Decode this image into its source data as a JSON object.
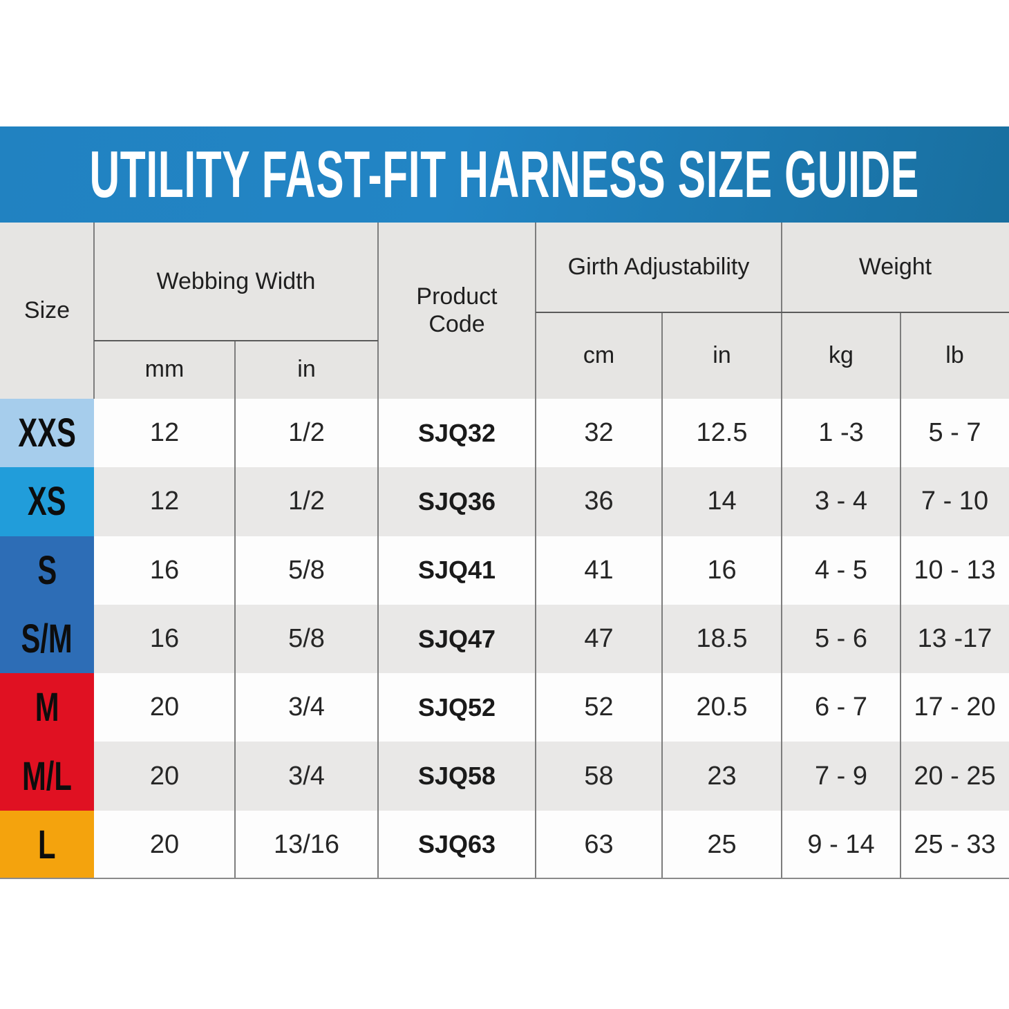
{
  "title": "UTILITY FAST-FIT HARNESS SIZE GUIDE",
  "colors": {
    "banner_gradient_start": "#2182c1",
    "banner_gradient_end": "#186f9f",
    "banner_text": "#ffffff",
    "header_background": "#e6e5e3",
    "row_stripe_light": "#fdfdfd",
    "row_stripe_gray": "#e9e8e7",
    "chip_xxs": "#a6cdec",
    "chip_xs": "#219dda",
    "chip_s": "#2d6db6",
    "chip_sm": "#2d6db6",
    "chip_m": "#e01122",
    "chip_ml": "#e01122",
    "chip_l": "#f4a30d",
    "grid_line": "#7d7d7d"
  },
  "table": {
    "headers": {
      "size": "Size",
      "webbing_width": "Webbing Width",
      "webbing_mm": "mm",
      "webbing_in": "in",
      "product_code": "Product Code",
      "girth_adjustability": "Girth Adjustability",
      "girth_cm": "cm",
      "girth_in": "in",
      "weight": "Weight",
      "weight_kg": "kg",
      "weight_lb": "lb"
    },
    "rows": [
      {
        "size": "XXS",
        "chip_color": "#a6cdec",
        "mm": "12",
        "in": "1/2",
        "code": "SJQ32",
        "cm": "32",
        "girth_in": "12.5",
        "kg": "1 -3",
        "lb": "5 - 7"
      },
      {
        "size": "XS",
        "chip_color": "#219dda",
        "mm": "12",
        "in": "1/2",
        "code": "SJQ36",
        "cm": "36",
        "girth_in": "14",
        "kg": "3 - 4",
        "lb": "7 - 10"
      },
      {
        "size": "S",
        "chip_color": "#2d6db6",
        "mm": "16",
        "in": "5/8",
        "code": "SJQ41",
        "cm": "41",
        "girth_in": "16",
        "kg": "4 - 5",
        "lb": "10 - 13"
      },
      {
        "size": "S/M",
        "chip_color": "#2d6db6",
        "mm": "16",
        "in": "5/8",
        "code": "SJQ47",
        "cm": "47",
        "girth_in": "18.5",
        "kg": "5 - 6",
        "lb": "13 -17"
      },
      {
        "size": "M",
        "chip_color": "#e01122",
        "mm": "20",
        "in": "3/4",
        "code": "SJQ52",
        "cm": "52",
        "girth_in": "20.5",
        "kg": "6 - 7",
        "lb": "17 - 20"
      },
      {
        "size": "M/L",
        "chip_color": "#e01122",
        "mm": "20",
        "in": "3/4",
        "code": "SJQ58",
        "cm": "58",
        "girth_in": "23",
        "kg": "7 - 9",
        "lb": "20 - 25"
      },
      {
        "size": "L",
        "chip_color": "#f4a30d",
        "mm": "20",
        "in": "13/16",
        "code": "SJQ63",
        "cm": "63",
        "girth_in": "25",
        "kg": "9 - 14",
        "lb": "25 - 33"
      }
    ]
  }
}
